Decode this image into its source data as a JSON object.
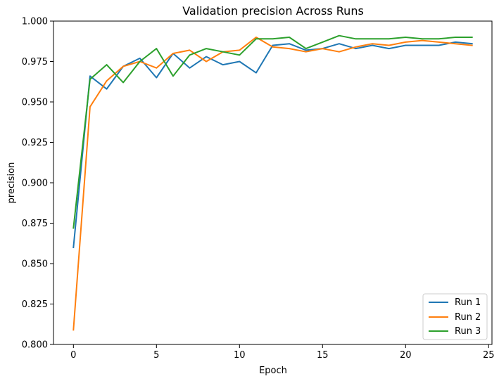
{
  "chart_data": {
    "type": "line",
    "title": "Validation precision Across Runs",
    "xlabel": "Epoch",
    "ylabel": "precision",
    "xlim": [
      -1.2,
      25.2
    ],
    "ylim": [
      0.8,
      1.0
    ],
    "xticks": [
      0,
      5,
      10,
      15,
      20,
      25
    ],
    "yticks": [
      0.8,
      0.825,
      0.85,
      0.875,
      0.9,
      0.925,
      0.95,
      0.975,
      1.0
    ],
    "xtick_labels": [
      "0",
      "5",
      "10",
      "15",
      "20",
      "25"
    ],
    "ytick_labels": [
      "0.800",
      "0.825",
      "0.850",
      "0.875",
      "0.900",
      "0.925",
      "0.950",
      "0.975",
      "1.000"
    ],
    "grid": false,
    "legend_position": "bottom-right",
    "x": [
      0,
      1,
      2,
      3,
      4,
      5,
      6,
      7,
      8,
      9,
      10,
      11,
      12,
      13,
      14,
      15,
      16,
      17,
      18,
      19,
      20,
      21,
      22,
      23,
      24
    ],
    "series": [
      {
        "name": "Run 1",
        "color": "#1f77b4",
        "values": [
          0.86,
          0.966,
          0.958,
          0.972,
          0.977,
          0.965,
          0.98,
          0.971,
          0.978,
          0.973,
          0.975,
          0.968,
          0.985,
          0.986,
          0.982,
          0.983,
          0.986,
          0.983,
          0.985,
          0.983,
          0.985,
          0.985,
          0.985,
          0.987,
          0.986
        ]
      },
      {
        "name": "Run 2",
        "color": "#ff7f0e",
        "values": [
          0.809,
          0.947,
          0.963,
          0.972,
          0.975,
          0.971,
          0.98,
          0.982,
          0.975,
          0.981,
          0.982,
          0.99,
          0.984,
          0.983,
          0.981,
          0.983,
          0.981,
          0.984,
          0.986,
          0.985,
          0.987,
          0.988,
          0.987,
          0.986,
          0.985
        ]
      },
      {
        "name": "Run 3",
        "color": "#2ca02c",
        "values": [
          0.872,
          0.964,
          0.973,
          0.962,
          0.975,
          0.983,
          0.966,
          0.979,
          0.983,
          0.981,
          0.979,
          0.989,
          0.989,
          0.99,
          0.983,
          0.987,
          0.991,
          0.989,
          0.989,
          0.989,
          0.99,
          0.989,
          0.989,
          0.99,
          0.99
        ]
      }
    ]
  }
}
